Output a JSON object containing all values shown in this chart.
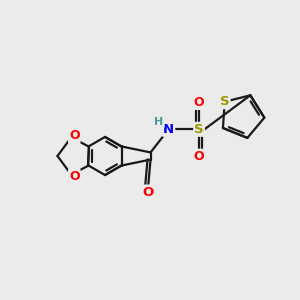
{
  "background_color": "#ebebeb",
  "bond_color": "#1a1a1a",
  "bond_width": 1.6,
  "atom_colors": {
    "O": "#ff0000",
    "N": "#0000ff",
    "S": "#999900",
    "H": "#4a9a9a"
  },
  "font_size": 8.5,
  "fig_width": 3.0,
  "fig_height": 3.0,
  "dpi": 100
}
